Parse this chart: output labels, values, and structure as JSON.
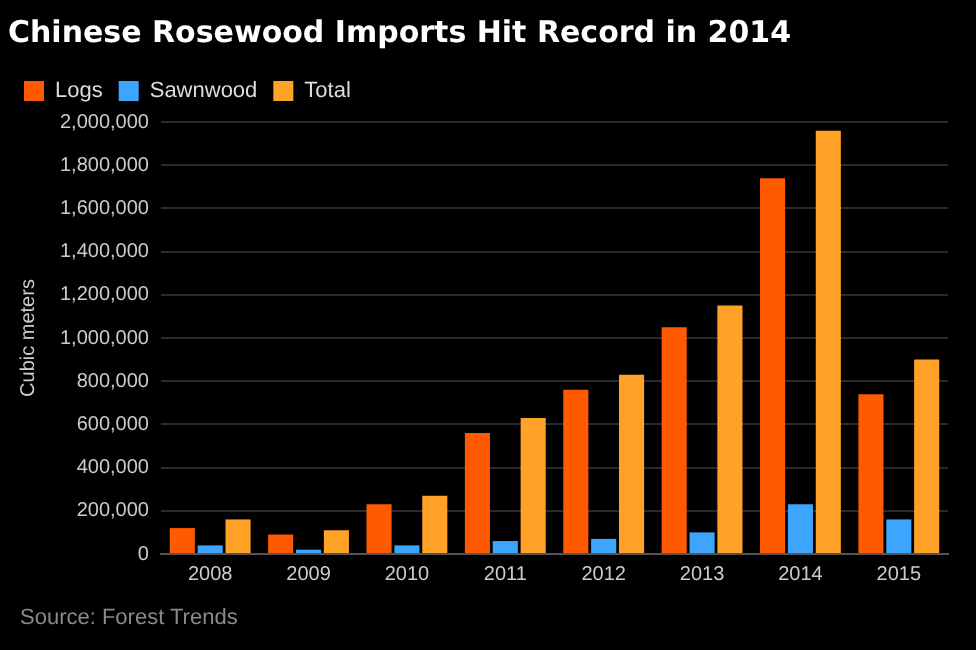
{
  "chart_data": {
    "type": "bar",
    "title": "Chinese Rosewood Imports Hit Record in 2014",
    "ylabel": "Cubic meters",
    "categories": [
      "2008",
      "2009",
      "2010",
      "2011",
      "2012",
      "2013",
      "2014",
      "2015"
    ],
    "series": [
      {
        "name": "Logs",
        "color": "#ff5a00",
        "values": [
          120000,
          90000,
          230000,
          560000,
          760000,
          1050000,
          1740000,
          740000
        ]
      },
      {
        "name": "Sawnwood",
        "color": "#3ea5ff",
        "values": [
          40000,
          20000,
          40000,
          60000,
          70000,
          100000,
          230000,
          160000
        ]
      },
      {
        "name": "Total",
        "color": "#ffa227",
        "values": [
          160000,
          110000,
          270000,
          630000,
          830000,
          1150000,
          1960000,
          900000
        ]
      }
    ],
    "ylim": [
      0,
      2000000
    ],
    "yticks": [
      0,
      {
        "value": 200000,
        "label": "200,000"
      },
      {
        "value": 400000,
        "label": "400,000"
      },
      {
        "value": 600000,
        "label": "600,000"
      },
      {
        "value": 800000,
        "label": "800,000"
      },
      {
        "value": 1000000,
        "label": "1,000,000"
      },
      {
        "value": 1200000,
        "label": "1,200,000"
      },
      {
        "value": 1400000,
        "label": "1,400,000"
      },
      {
        "value": 1600000,
        "label": "1,600,000"
      },
      {
        "value": 1800000,
        "label": "1,800,000"
      },
      {
        "value": 2000000,
        "label": "2,000,000"
      }
    ],
    "grid": "y",
    "legend": "top left",
    "annotations": [
      "Source: Forest Trends"
    ]
  }
}
